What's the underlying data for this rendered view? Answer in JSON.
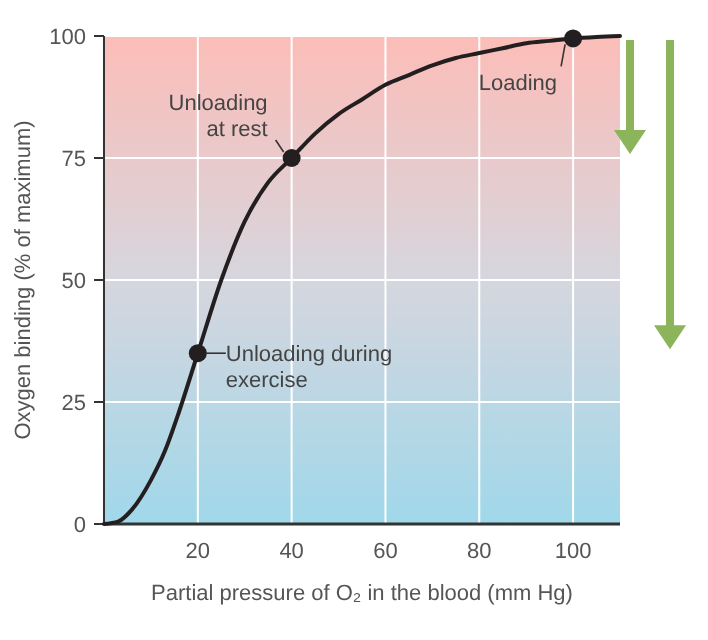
{
  "chart_data": {
    "type": "line",
    "xlabel": "Partial pressure of O₂ in the blood (mm Hg)",
    "ylabel": "Oxygen binding (% of maximum)",
    "xlim": [
      0,
      110
    ],
    "ylim": [
      0,
      100
    ],
    "xticks": [
      20,
      40,
      60,
      80,
      100
    ],
    "yticks": [
      0,
      25,
      50,
      75,
      100
    ],
    "grid": true,
    "marker": "none",
    "line_style": "solid",
    "series": [
      {
        "color": "#231f20",
        "x": [
          0,
          3,
          6,
          10,
          13,
          16,
          20,
          25,
          30,
          35,
          40,
          45,
          50,
          55,
          60,
          65,
          70,
          75,
          80,
          85,
          90,
          95,
          100,
          105,
          110
        ],
        "values": [
          0,
          0.5,
          3,
          9,
          15,
          23,
          35,
          50,
          62,
          70,
          75,
          80,
          84,
          87,
          90,
          92,
          94,
          95.5,
          96.5,
          97.5,
          98.5,
          99,
          99.5,
          99.8,
          100
        ]
      },
      {
        "type": "scatter",
        "marker": "circle",
        "color": "#231f20",
        "x": [
          20,
          40,
          100
        ],
        "values": [
          35,
          75,
          99.5
        ]
      }
    ],
    "annotations": [
      {
        "text": "Unloading during\nexercise",
        "x": 20,
        "y": 35
      },
      {
        "text": "Unloading\nat rest",
        "x": 40,
        "y": 75
      },
      {
        "text": "Loading",
        "x": 100,
        "y": 99.5
      }
    ]
  }
}
